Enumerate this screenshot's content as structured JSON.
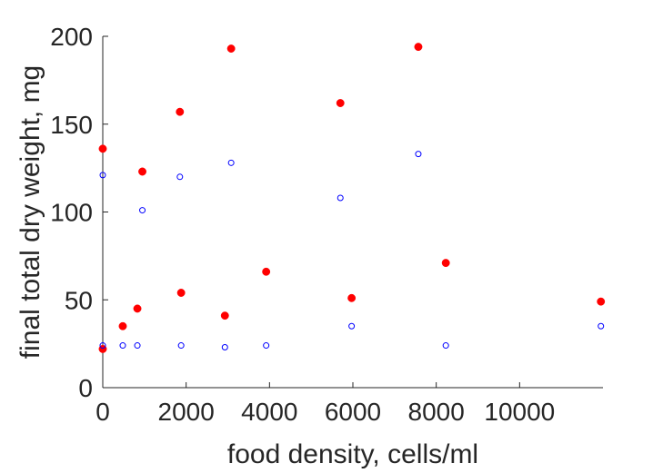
{
  "chart_data": {
    "type": "scatter",
    "title": "",
    "xlabel": "food density, cells/ml",
    "ylabel": "final total dry weight, mg",
    "xlim": [
      0,
      12000
    ],
    "ylim": [
      0,
      200
    ],
    "xticks": [
      0,
      2000,
      4000,
      6000,
      8000,
      10000
    ],
    "xtick_labels": [
      "0",
      "2000",
      "4000",
      "6000",
      "8000",
      "10000"
    ],
    "yticks": [
      0,
      50,
      100,
      150,
      200
    ],
    "ytick_labels": [
      "0",
      "50",
      "100",
      "150",
      "200"
    ],
    "grid": false,
    "legend": false,
    "series": [
      {
        "marker": "filled-circle",
        "color": "#ff0000",
        "points": [
          [
            0,
            22
          ],
          [
            0,
            136
          ],
          [
            480,
            35
          ],
          [
            830,
            45
          ],
          [
            950,
            123
          ],
          [
            1850,
            157
          ],
          [
            1880,
            54
          ],
          [
            2930,
            41
          ],
          [
            3080,
            193
          ],
          [
            3920,
            66
          ],
          [
            5700,
            162
          ],
          [
            5970,
            51
          ],
          [
            7570,
            194
          ],
          [
            8230,
            71
          ],
          [
            11950,
            49
          ]
        ]
      },
      {
        "marker": "open-circle",
        "color": "#0000ff",
        "points": [
          [
            0,
            24
          ],
          [
            0,
            121
          ],
          [
            480,
            24
          ],
          [
            830,
            24
          ],
          [
            950,
            101
          ],
          [
            1850,
            120
          ],
          [
            1880,
            24
          ],
          [
            2930,
            23
          ],
          [
            3080,
            128
          ],
          [
            3920,
            24
          ],
          [
            5700,
            108
          ],
          [
            5970,
            35
          ],
          [
            7570,
            133
          ],
          [
            8230,
            24
          ],
          [
            11950,
            35
          ]
        ]
      }
    ]
  }
}
